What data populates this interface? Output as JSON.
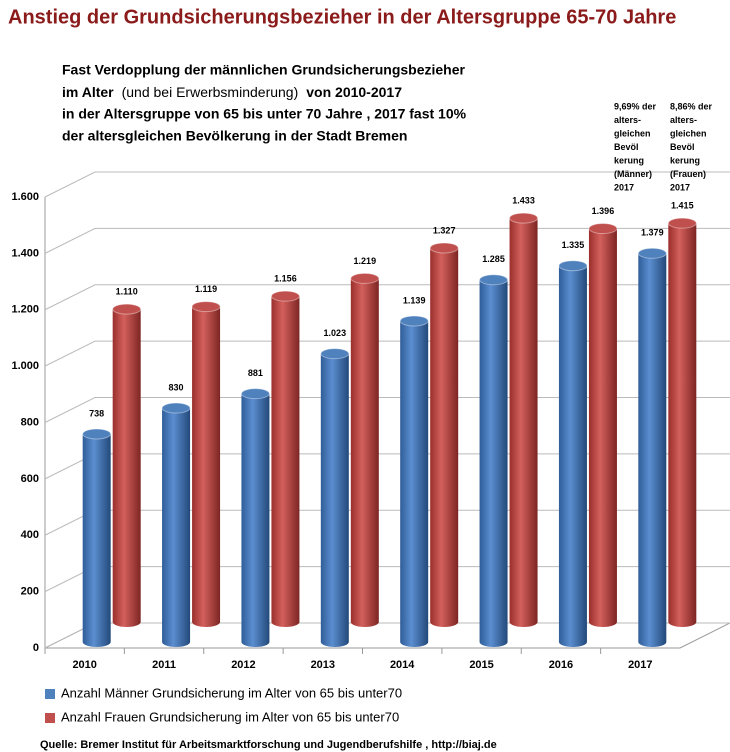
{
  "chart_data": {
    "type": "bar3d",
    "title": "Anstieg der Grundsicherungsbezieher in der Altersgruppe 65-70 Jahre",
    "subtitle": [
      "Fast Verdopplung der männlichen Grundsicherungsbezieher",
      [
        "im Alter",
        "(und bei  Erwerbsminderung)",
        "von 2010-2017"
      ],
      "in der Altersgruppe von 65 bis unter 70 Jahre , 2017 fast 10%",
      "der altersgleichen  Bevölkerung in der Stadt Bremen"
    ],
    "annotations": [
      [
        "9,69% der",
        "alters-",
        "gleichen",
        "Bevöl",
        "kerung",
        "(Männer)",
        "2017"
      ],
      [
        "8,86% der",
        "alters-",
        "gleichen",
        "Bevöl",
        "kerung",
        "(Frauen)",
        "2017"
      ]
    ],
    "categories": [
      "2010",
      "2011",
      "2012",
      "2013",
      "2014",
      "2015",
      "2016",
      "2017"
    ],
    "series": [
      {
        "name": "Anzahl Männer Grundsicherung im Alter von 65 bis unter70",
        "color": "#4f81bd",
        "values": [
          738,
          830,
          881,
          1023,
          1139,
          1285,
          1335,
          1379
        ],
        "value_labels": [
          "738",
          "830",
          "881",
          "1.023",
          "1.139",
          "1.285",
          "1.335",
          "1.379"
        ]
      },
      {
        "name": "Anzahl Frauen Grundsicherung im Alter von 65 bis unter70",
        "color": "#c0504d",
        "values": [
          1110,
          1119,
          1156,
          1219,
          1327,
          1433,
          1396,
          1415
        ],
        "value_labels": [
          "1.110",
          "1.119",
          "1.156",
          "1.219",
          "1.327",
          "1.433",
          "1.396",
          "1.415"
        ]
      }
    ],
    "ylim": [
      0,
      1600
    ],
    "yticks": [
      0,
      200,
      400,
      600,
      800,
      {
        "value": 1000,
        "label": "1.000"
      },
      {
        "value": 1200,
        "label": "1.200"
      },
      {
        "value": 1400,
        "label": "1.400"
      },
      {
        "value": 1600,
        "label": "1.600"
      }
    ],
    "grid": true,
    "source": "Quelle: Bremer Institut  für Arbeitsmarktforschung  und  Jugendberufshilfe  , http://biaj.de"
  }
}
